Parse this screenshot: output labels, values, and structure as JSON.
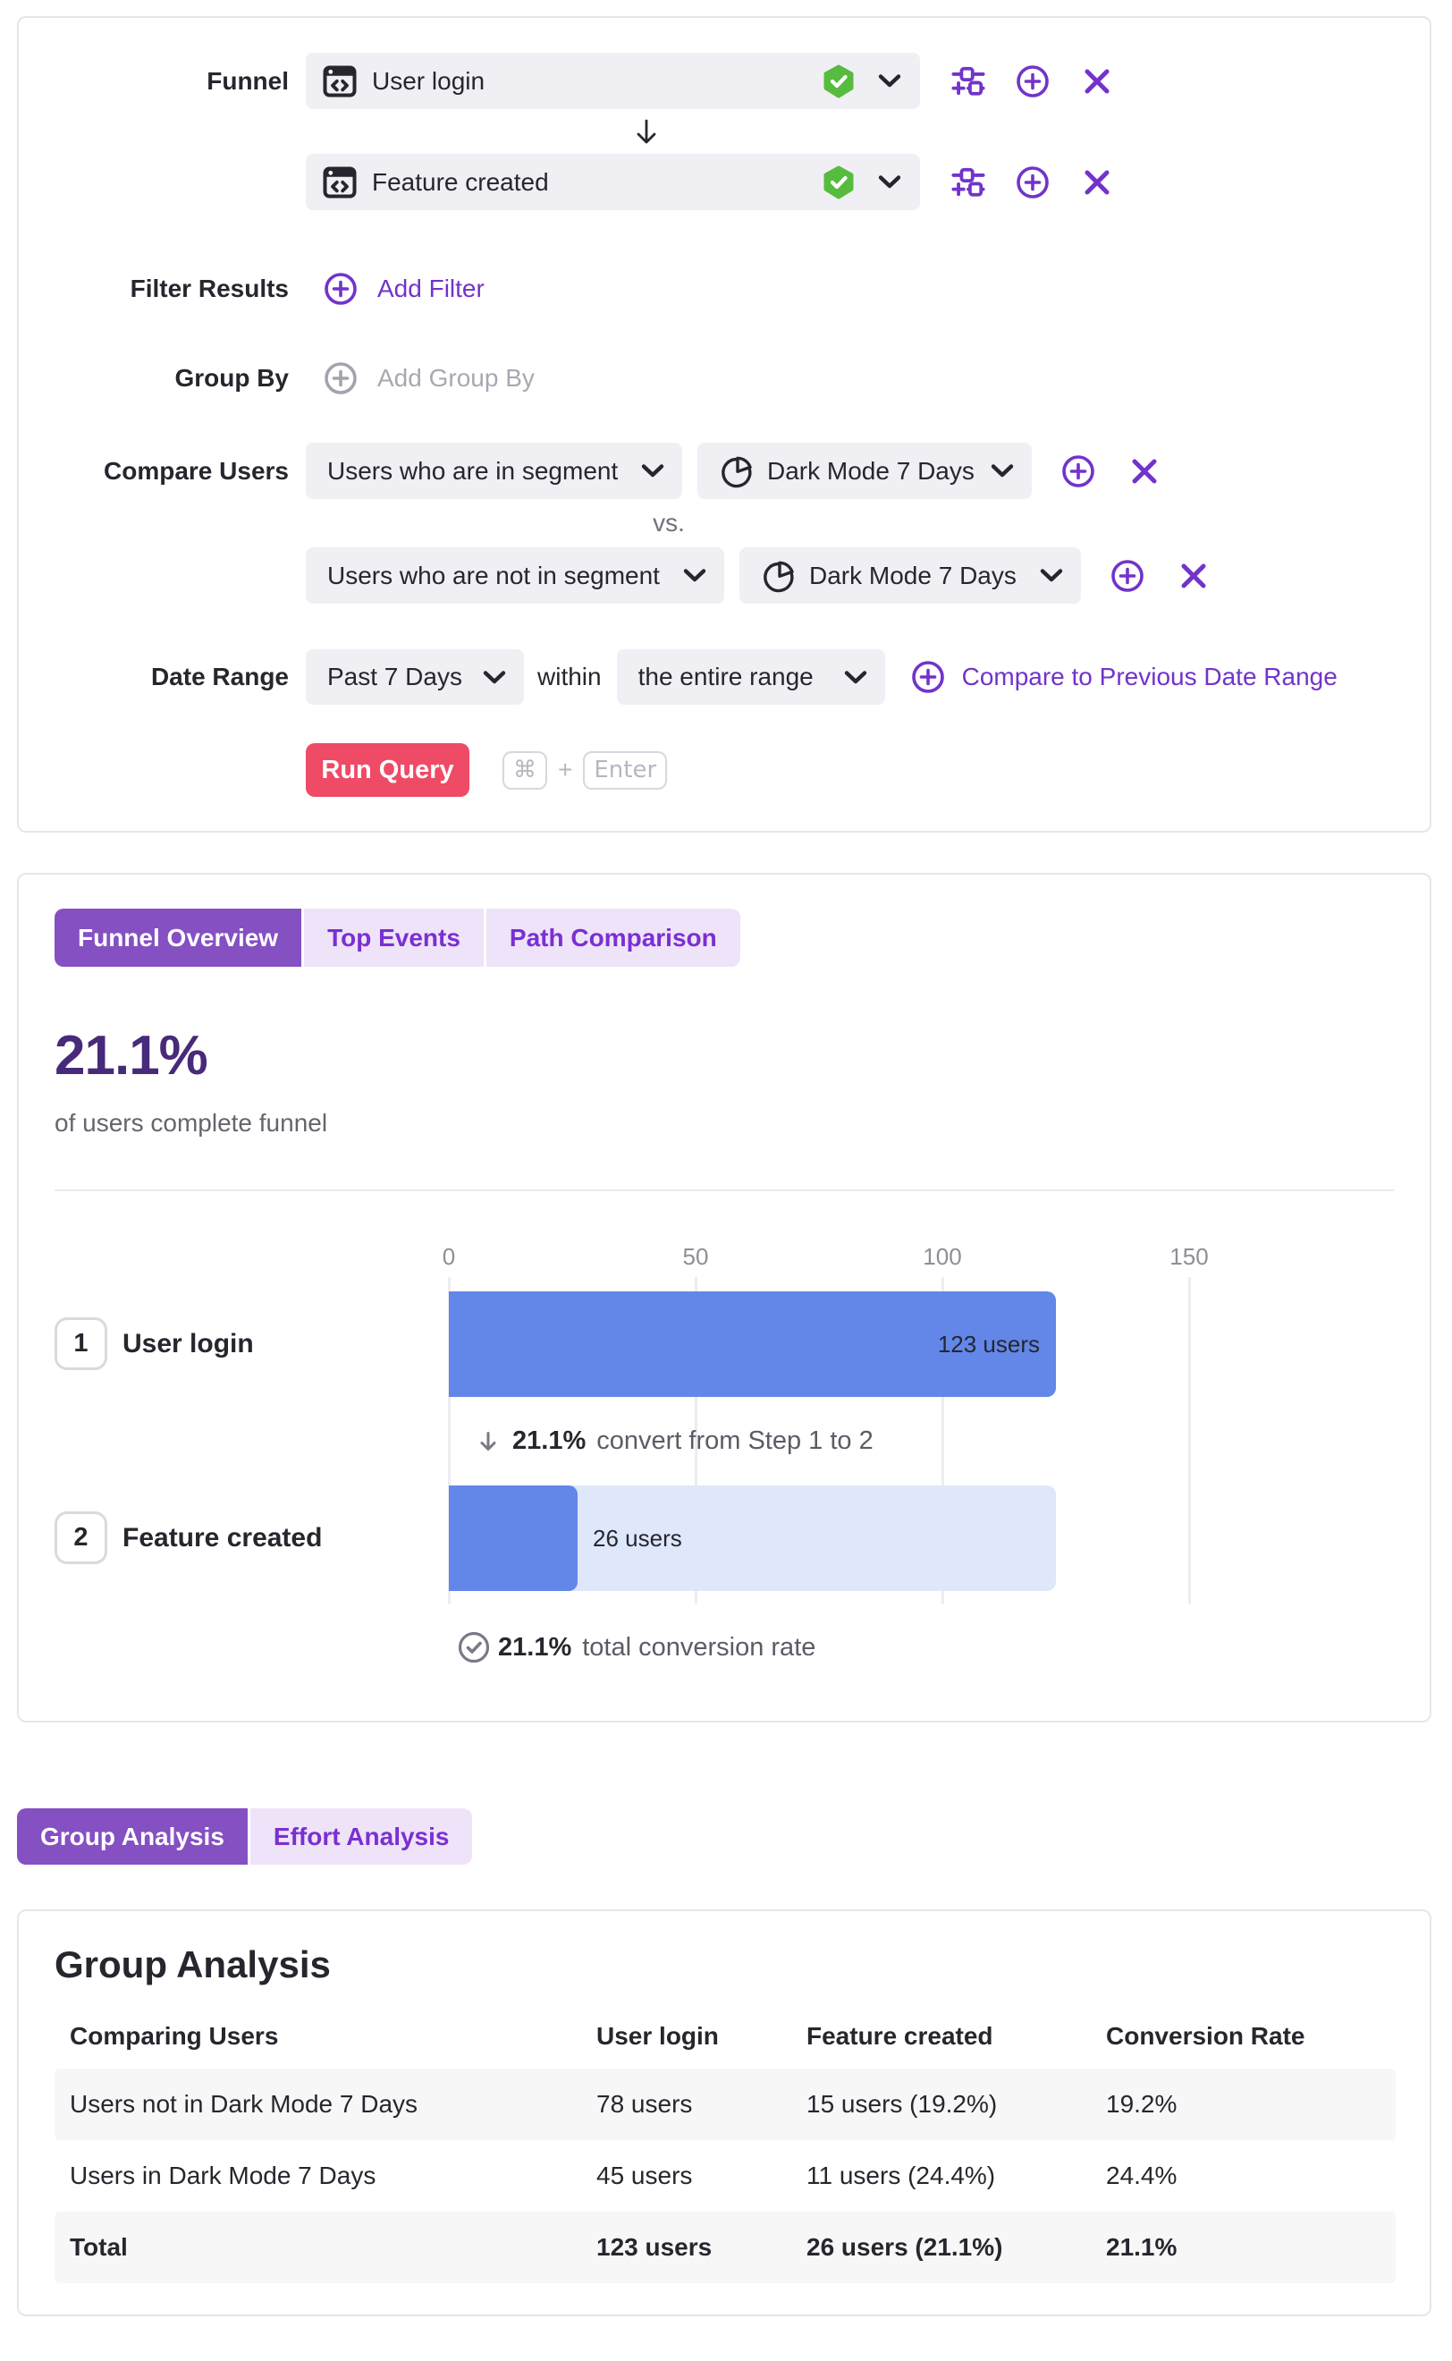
{
  "query_builder": {
    "funnel_label": "Funnel",
    "steps": [
      {
        "name": "User login",
        "verified": true
      },
      {
        "name": "Feature created",
        "verified": true
      }
    ],
    "filter_results": {
      "label": "Filter Results",
      "add_label": "Add Filter"
    },
    "group_by": {
      "label": "Group By",
      "placeholder": "Add Group By"
    },
    "compare_users": {
      "label": "Compare Users",
      "vs_label": "vs.",
      "comparisons": [
        {
          "condition": "Users who are in segment",
          "segment": "Dark Mode 7 Days"
        },
        {
          "condition": "Users who are not in segment",
          "segment": "Dark Mode 7 Days"
        }
      ]
    },
    "date_range": {
      "label": "Date Range",
      "range": "Past 7 Days",
      "within_label": "within",
      "within_range": "the entire range",
      "compare_link": "Compare to Previous Date Range"
    },
    "run_query": {
      "label": "Run Query",
      "shortcut": {
        "cmd": "⌘",
        "plus": "+",
        "enter": "Enter"
      }
    }
  },
  "results": {
    "tabs": [
      {
        "label": "Funnel Overview",
        "active": true
      },
      {
        "label": "Top Events",
        "active": false
      },
      {
        "label": "Path Comparison",
        "active": false
      }
    ],
    "headline": "21.1%",
    "subtitle": "of users complete funnel",
    "steps": [
      {
        "index": "1",
        "name": "User login",
        "value_label": "123 users"
      },
      {
        "index": "2",
        "name": "Feature created",
        "value_label": "26 users"
      }
    ],
    "step_conversion": {
      "percent": "21.1%",
      "text": "convert from Step 1 to 2"
    },
    "total_conversion": {
      "percent": "21.1%",
      "text": "total conversion rate"
    }
  },
  "chart_data": {
    "type": "bar",
    "orientation": "horizontal",
    "title": "Funnel Overview",
    "categories": [
      "User login",
      "Feature created"
    ],
    "values": [
      123,
      26
    ],
    "track_values": [
      123,
      123
    ],
    "value_labels": [
      "123 users",
      "26 users"
    ],
    "x_ticks": [
      0,
      50,
      100,
      150
    ],
    "xlim": [
      0,
      150
    ],
    "unit": "users",
    "grid": true,
    "legend": false,
    "bar_color": "#6287e8",
    "track_color": "#dfe7fb",
    "step_conversion_percent": 21.1,
    "total_conversion_percent": 21.1
  },
  "analysis": {
    "tabs": [
      {
        "label": "Group Analysis",
        "active": true
      },
      {
        "label": "Effort Analysis",
        "active": false
      }
    ],
    "heading": "Group Analysis",
    "table": {
      "columns": [
        "Comparing Users",
        "User login",
        "Feature created",
        "Conversion Rate"
      ],
      "rows": [
        {
          "cells": [
            "Users not in Dark Mode 7 Days",
            "78 users",
            "15 users (19.2%)",
            "19.2%"
          ]
        },
        {
          "cells": [
            "Users in Dark Mode 7 Days",
            "45 users",
            "11 users (24.4%)",
            "24.4%"
          ]
        },
        {
          "cells": [
            "Total",
            "123 users",
            "26 users (21.1%)",
            "21.1%"
          ]
        }
      ]
    }
  },
  "icons": {
    "event_icon": "window-code",
    "verified_icon": "shield-check-green",
    "chevron_down_icon": "chevron-down",
    "filter_sliders_icon": "sliders",
    "add_circle_icon": "plus-circle",
    "remove_icon": "x-cross",
    "pie_chart_icon": "pie-chart",
    "arrow_down_icon": "arrow-down",
    "check_circle_icon": "check-circle",
    "cmd_key_icon": "⌘"
  },
  "colors": {
    "accent_purple": "#7233cb",
    "tab_active_bg": "#8450c4",
    "tab_inactive_bg": "#efe5f9",
    "tab_inactive_text": "#7a2fd3",
    "headline_purple": "#482577",
    "bar_blue": "#6287e8",
    "bar_track_blue": "#dfe7fb",
    "run_button_red": "#f04c68",
    "verified_green": "#57bb3f",
    "pill_gray": "#f0eff3"
  }
}
